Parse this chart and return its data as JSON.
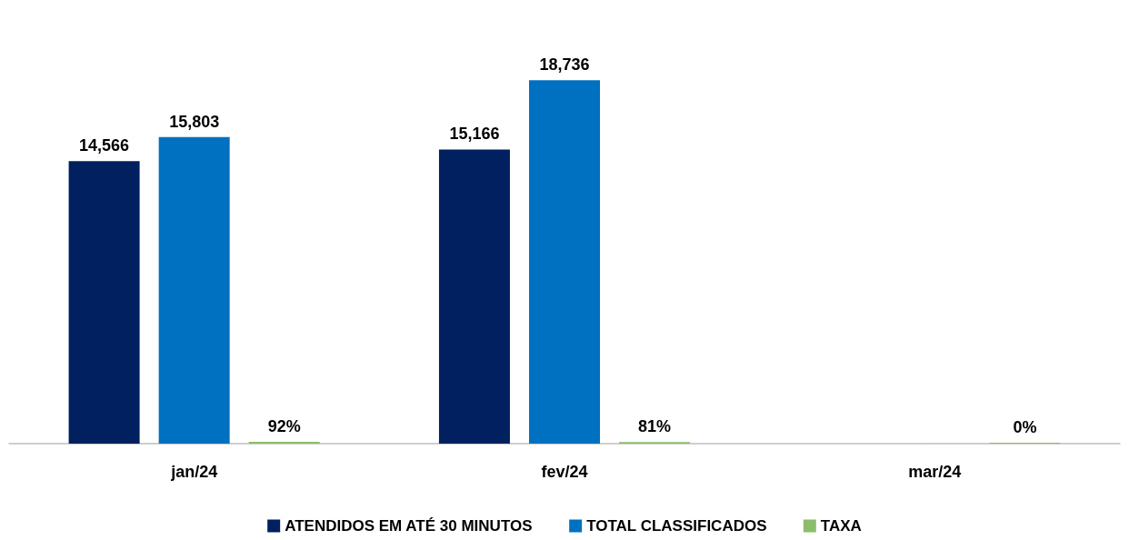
{
  "chart_data": {
    "type": "bar",
    "categories": [
      "jan/24",
      "fev/24",
      "mar/24"
    ],
    "series": [
      {
        "name": "ATENDIDOS EM ATÉ 30 MINUTOS",
        "color": "#002060",
        "values": [
          14566,
          15166,
          null
        ],
        "value_labels": [
          "14,566",
          "15,166",
          null
        ]
      },
      {
        "name": "TOTAL CLASSIFICADOS",
        "color": "#0070c0",
        "values": [
          15803,
          18736,
          null
        ],
        "value_labels": [
          "15,803",
          "18,736",
          null
        ]
      },
      {
        "name": "TAXA",
        "color": "#8cbd6a",
        "values": [
          92,
          81,
          0
        ],
        "value_labels": [
          "92%",
          "81%",
          "0%"
        ]
      }
    ],
    "legend": "bottom"
  }
}
